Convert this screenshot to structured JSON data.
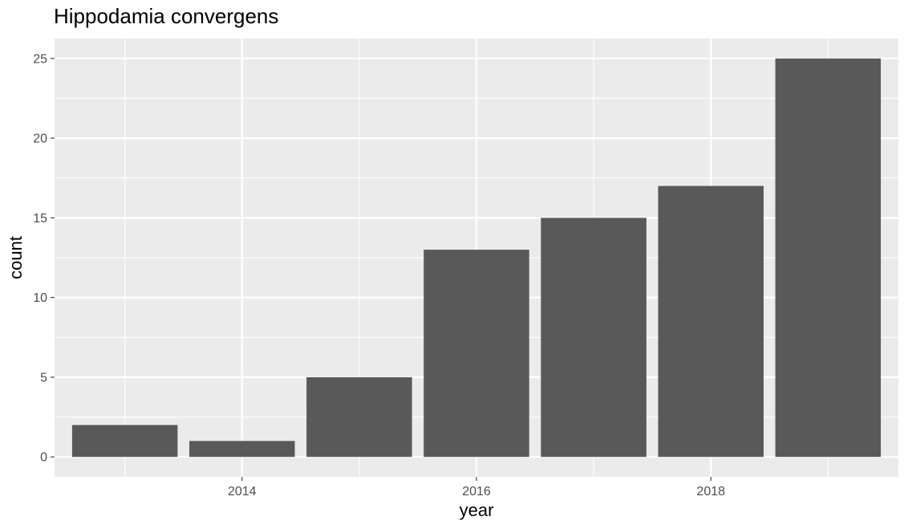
{
  "chart_data": {
    "type": "bar",
    "title": "Hippodamia convergens",
    "xlabel": "year",
    "ylabel": "count",
    "categories": [
      2013,
      2014,
      2015,
      2016,
      2017,
      2018,
      2019
    ],
    "values": [
      2,
      1,
      5,
      13,
      15,
      17,
      25
    ],
    "xlim": [
      2012.4,
      2019.6
    ],
    "ylim": [
      -1.25,
      26.25
    ],
    "x_ticks": [
      2014,
      2016,
      2018
    ],
    "y_ticks": [
      0,
      5,
      10,
      15,
      20,
      25
    ],
    "grid": true,
    "bar_color": "#595959",
    "panel_color": "#ebebeb",
    "grid_color": "#ffffff"
  }
}
